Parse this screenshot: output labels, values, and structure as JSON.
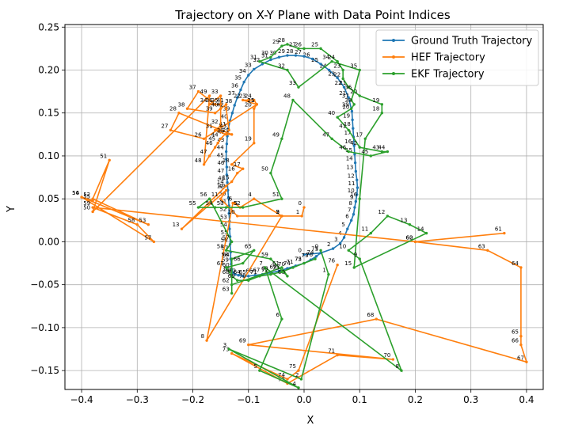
{
  "chart_data": {
    "type": "line",
    "title": "Trajectory on X-Y Plane with Data Point Indices",
    "xlabel": "X",
    "ylabel": "Y",
    "xlim": [
      -0.43,
      0.43
    ],
    "ylim": [
      -0.172,
      0.253
    ],
    "xticks": [
      -0.4,
      -0.3,
      -0.2,
      -0.1,
      0.0,
      0.1,
      0.2,
      0.3,
      0.4
    ],
    "xtick_labels": [
      "−0.4",
      "−0.3",
      "−0.2",
      "−0.1",
      "0.0",
      "0.1",
      "0.2",
      "0.3",
      "0.4"
    ],
    "yticks": [
      -0.15,
      -0.1,
      -0.05,
      0.0,
      0.05,
      0.1,
      0.15,
      0.2,
      0.25
    ],
    "ytick_labels": [
      "−0.15",
      "−0.10",
      "−0.05",
      "0.00",
      "0.05",
      "0.10",
      "0.15",
      "0.20",
      "0.25"
    ],
    "grid": true,
    "legend_position": "top-right",
    "series": [
      {
        "name": "Ground Truth Trajectory",
        "color": "#1f77b4",
        "x": [
          0.0,
          0.03,
          0.052,
          0.065,
          0.072,
          0.078,
          0.085,
          0.089,
          0.091,
          0.093,
          0.095,
          0.096,
          0.095,
          0.093,
          0.092,
          0.091,
          0.09,
          0.089,
          0.088,
          0.087,
          0.086,
          0.08,
          0.072,
          0.06,
          0.045,
          0.03,
          0.015,
          0.0,
          -0.015,
          -0.03,
          -0.045,
          -0.06,
          -0.075,
          -0.09,
          -0.1,
          -0.108,
          -0.114,
          -0.12,
          -0.125,
          -0.129,
          -0.133,
          -0.136,
          -0.138,
          -0.139,
          -0.14,
          -0.14,
          -0.139,
          -0.139,
          -0.138,
          -0.137,
          -0.136,
          -0.135,
          -0.135,
          -0.134,
          -0.134,
          -0.133,
          -0.133,
          -0.132,
          -0.132,
          -0.131,
          -0.13,
          -0.128,
          -0.124,
          -0.118,
          -0.11,
          -0.1,
          -0.088,
          -0.075,
          -0.06,
          -0.045,
          -0.03,
          -0.015,
          0.0,
          0.012,
          0.022,
          0.03
        ],
        "y": [
          -0.015,
          -0.013,
          -0.008,
          -0.002,
          0.005,
          0.015,
          0.025,
          0.032,
          0.04,
          0.047,
          0.055,
          0.063,
          0.072,
          0.082,
          0.092,
          0.102,
          0.112,
          0.122,
          0.132,
          0.142,
          0.152,
          0.168,
          0.18,
          0.191,
          0.2,
          0.207,
          0.213,
          0.216,
          0.217,
          0.217,
          0.215,
          0.212,
          0.207,
          0.201,
          0.194,
          0.186,
          0.177,
          0.168,
          0.159,
          0.15,
          0.141,
          0.132,
          0.123,
          0.114,
          0.105,
          0.096,
          0.087,
          0.078,
          0.069,
          0.06,
          0.051,
          0.042,
          0.033,
          0.024,
          0.015,
          0.006,
          -0.003,
          -0.012,
          -0.02,
          -0.026,
          -0.032,
          -0.036,
          -0.038,
          -0.039,
          -0.04,
          -0.04,
          -0.039,
          -0.038,
          -0.036,
          -0.034,
          -0.031,
          -0.028,
          -0.025,
          -0.021,
          -0.017,
          -0.013
        ]
      },
      {
        "name": "HEF Trajectory",
        "color": "#ff7f0e",
        "x": [
          0.0,
          -0.004,
          -0.04,
          -0.04,
          -0.09,
          -0.115,
          -0.125,
          -0.128,
          -0.175,
          -0.04,
          -0.12,
          -0.15,
          -0.14,
          -0.22,
          -0.14,
          -0.13,
          -0.12,
          -0.11,
          -0.13,
          -0.09,
          -0.09,
          -0.085,
          -0.11,
          -0.1,
          -0.09,
          -0.085,
          -0.18,
          -0.24,
          -0.225,
          -0.13,
          -0.14,
          -0.16,
          -0.15,
          -0.15,
          -0.17,
          -0.15,
          -0.16,
          -0.19,
          -0.21,
          -0.16,
          -0.15,
          -0.14,
          -0.14,
          -0.135,
          -0.15,
          -0.155,
          -0.16,
          -0.17,
          -0.18,
          -0.17,
          -0.38,
          -0.35,
          -0.38,
          -0.28,
          -0.4,
          -0.38,
          -0.4,
          -0.27,
          -0.3,
          -0.38,
          0.2,
          0.36,
          0.2,
          0.33,
          0.39,
          0.39,
          0.39,
          0.4,
          0.13,
          -0.1,
          0.16,
          0.06,
          -0.03,
          -0.13,
          -0.03,
          -0.01,
          0.06
        ],
        "y": [
          0.04,
          0.03,
          0.03,
          0.03,
          0.05,
          0.04,
          0.045,
          0.045,
          -0.115,
          0.03,
          0.03,
          0.05,
          0.06,
          0.015,
          0.065,
          0.07,
          0.08,
          0.085,
          0.09,
          0.115,
          0.155,
          0.16,
          0.165,
          0.165,
          0.165,
          0.16,
          0.12,
          0.13,
          0.15,
          0.125,
          0.125,
          0.13,
          0.135,
          0.17,
          0.16,
          0.16,
          0.16,
          0.175,
          0.155,
          0.15,
          0.155,
          0.16,
          0.155,
          0.13,
          0.12,
          0.115,
          0.11,
          0.1,
          0.09,
          0.17,
          0.035,
          0.095,
          0.05,
          0.02,
          0.052,
          0.048,
          0.052,
          0.0,
          0.02,
          0.04,
          0.0,
          0.01,
          0.0,
          -0.01,
          -0.03,
          -0.11,
          -0.12,
          -0.14,
          -0.09,
          -0.12,
          -0.137,
          -0.132,
          -0.165,
          -0.13,
          -0.16,
          -0.15,
          -0.027
        ]
      },
      {
        "name": "EKF Trajectory",
        "color": "#2ca02c",
        "x": [
          0.03,
          0.044,
          -0.005,
          -0.135,
          -0.01,
          -0.08,
          -0.04,
          -0.07,
          0.175,
          0.1,
          0.08,
          0.12,
          0.15,
          0.19,
          0.22,
          0.09,
          0.1,
          0.11,
          0.14,
          0.14,
          0.1,
          0.08,
          0.07,
          0.07,
          0.06,
          0.03,
          0.0,
          -0.01,
          -0.03,
          -0.04,
          -0.06,
          -0.08,
          -0.03,
          -0.01,
          0.05,
          0.1,
          0.09,
          0.085,
          0.09,
          0.085,
          0.06,
          0.08,
          0.1,
          0.14,
          0.15,
          0.12,
          0.08,
          0.05,
          -0.02,
          -0.04,
          -0.06,
          -0.04,
          -0.11,
          -0.14,
          -0.16,
          -0.19,
          -0.17,
          -0.13,
          -0.14,
          -0.06,
          -0.03,
          -0.04,
          -0.13,
          -0.13,
          -0.13,
          -0.09,
          -0.11,
          -0.14,
          -0.13,
          -0.12,
          -0.1,
          -0.08,
          -0.06,
          -0.04,
          -0.02,
          0.0,
          0.02
        ],
        "y": [
          -0.01,
          -0.038,
          -0.16,
          -0.125,
          -0.17,
          -0.15,
          -0.09,
          -0.03,
          -0.15,
          -0.02,
          -0.01,
          0.01,
          0.03,
          0.02,
          0.01,
          -0.03,
          0.05,
          0.12,
          0.15,
          0.16,
          0.17,
          0.18,
          0.19,
          0.2,
          0.21,
          0.225,
          0.225,
          0.225,
          0.23,
          0.228,
          0.215,
          0.21,
          0.2,
          0.18,
          0.21,
          0.2,
          0.175,
          0.165,
          0.16,
          0.155,
          0.145,
          0.13,
          0.11,
          0.105,
          0.105,
          0.1,
          0.105,
          0.12,
          0.165,
          0.12,
          0.08,
          0.05,
          0.04,
          0.04,
          0.04,
          0.04,
          0.05,
          0.0,
          -0.01,
          -0.02,
          -0.04,
          -0.03,
          -0.05,
          -0.06,
          -0.02,
          -0.01,
          -0.025,
          -0.03,
          -0.04,
          -0.045,
          -0.045,
          -0.04,
          -0.038,
          -0.035,
          -0.03,
          -0.025,
          -0.02
        ]
      }
    ]
  }
}
